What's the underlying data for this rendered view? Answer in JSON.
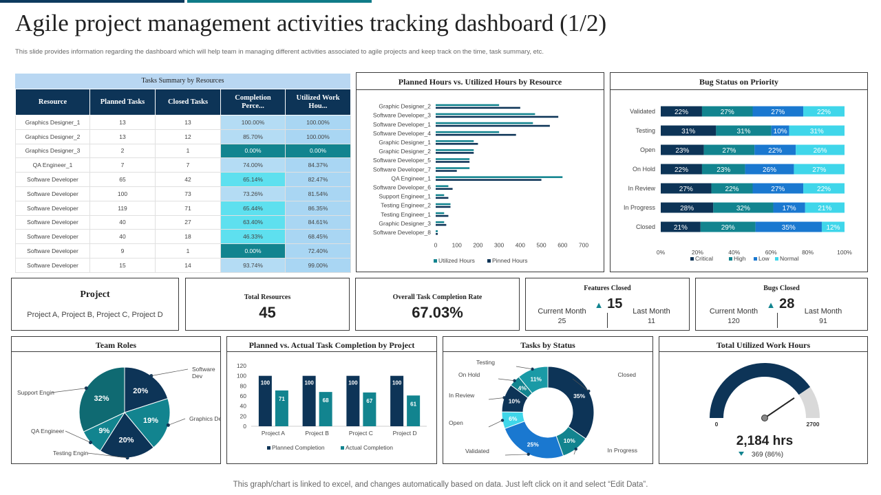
{
  "title": "Agile project management activities tracking dashboard (1/2)",
  "subtitle": "This slide provides information regarding the dashboard which will help team in managing different activities associated to agile projects and keep track on the time, task summary, etc.",
  "footer": "This graph/chart is linked to excel, and changes automatically based on data. Just left click on it and select “Edit Data”.",
  "colors": {
    "navy": "#0d3457",
    "teal": "#12848f",
    "blue": "#1a78d0",
    "cyan": "#3fd6ea",
    "grey": "#d9d9d9"
  },
  "tasks_table": {
    "title": "Tasks Summary by Resources",
    "headers": [
      "Resource",
      "Planned Tasks",
      "Closed Tasks",
      "Completion Perce...",
      "Utilized Work Hou..."
    ],
    "rows": [
      [
        "Graphics Designer_1",
        "13",
        "13",
        "100.00%",
        "100.00%"
      ],
      [
        "Graphics Designer_2",
        "13",
        "12",
        "85.70%",
        "100.00%"
      ],
      [
        "Graphics Designer_3",
        "2",
        "1",
        "0.00%",
        "0.00%"
      ],
      [
        "QA Engineer_1",
        "7",
        "7",
        "74.00%",
        "84.37%"
      ],
      [
        "Software Developer",
        "65",
        "42",
        "65.14%",
        "82.47%"
      ],
      [
        "Software Developer",
        "100",
        "73",
        "73.26%",
        "81.54%"
      ],
      [
        "Software Developer",
        "119",
        "71",
        "65.44%",
        "86.35%"
      ],
      [
        "Software Developer",
        "40",
        "27",
        "63.40%",
        "84.61%"
      ],
      [
        "Software Developer",
        "40",
        "18",
        "46.33%",
        "68.45%"
      ],
      [
        "Software Developer",
        "9",
        "1",
        "0.00%",
        "72.40%"
      ],
      [
        "Software Developer",
        "15",
        "14",
        "93.74%",
        "99.00%"
      ]
    ]
  },
  "kpis": {
    "project": {
      "label": "Project",
      "value": "Project A, Project B, Project C, Project D"
    },
    "resources": {
      "label": "Total Resources",
      "value": "45"
    },
    "completion": {
      "label": "Overall Task Completion Rate",
      "value": "67.03%"
    },
    "features": {
      "label": "Features Closed",
      "value": "15",
      "current_label": "Current Month",
      "current": "25",
      "last_label": "Last Month",
      "last": "11"
    },
    "bugs": {
      "label": "Bugs Closed",
      "value": "28",
      "current_label": "Current Month",
      "current": "120",
      "last_label": "Last Month",
      "last": "91"
    }
  },
  "gauge": {
    "title": "Total Utilized Work Hours",
    "min": "0",
    "max": "2700",
    "value": "2,184 hrs",
    "change": "369 (86%)",
    "fraction": 0.81
  },
  "chart_data": [
    {
      "id": "hours",
      "type": "bar",
      "orientation": "horizontal",
      "title": "Planned Hours vs. Utilized Hours by Resource",
      "categories": [
        "Graphic Designer_2",
        "Software Developer_3",
        "Software Developer_1",
        "Software Developer_4",
        "Graphic Designer_1",
        "Graphic Designer_2",
        "Software Developer_5",
        "Software Developer_7",
        "QA Engineer_1",
        "Software Developer_6",
        "Support Engineer_1",
        "Testing Engineer_2",
        "Testing Engineer_1",
        "Graphic Designer_3",
        "Software Developer_8"
      ],
      "series": [
        {
          "name": "Utilized Hours",
          "color": "#12848f",
          "values": [
            300,
            470,
            460,
            300,
            180,
            180,
            160,
            160,
            600,
            60,
            40,
            70,
            40,
            40,
            10
          ]
        },
        {
          "name": "Pinned Hours",
          "color": "#0d3457",
          "values": [
            400,
            580,
            540,
            380,
            200,
            180,
            160,
            100,
            500,
            80,
            60,
            70,
            60,
            50,
            10
          ]
        }
      ],
      "xlim": [
        0,
        700
      ],
      "xticks": [
        0,
        100,
        200,
        300,
        400,
        500,
        600,
        700
      ]
    },
    {
      "id": "bugs",
      "type": "bar",
      "orientation": "horizontal",
      "stacked": true,
      "title": "Bug Status on Priority",
      "categories": [
        "Validated",
        "Testing",
        "Open",
        "On Hold",
        "In Review",
        "In Progress",
        "Closed"
      ],
      "series": [
        {
          "name": "Critical",
          "color": "#0d3457",
          "values": [
            22,
            31,
            23,
            22,
            27,
            28,
            21
          ]
        },
        {
          "name": "High",
          "color": "#12848f",
          "values": [
            27,
            31,
            27,
            23,
            22,
            32,
            29
          ]
        },
        {
          "name": "Low",
          "color": "#1a78d0",
          "values": [
            27,
            10,
            22,
            26,
            27,
            17,
            35
          ]
        },
        {
          "name": "Normal",
          "color": "#3fd6ea",
          "values": [
            22,
            31,
            26,
            27,
            22,
            21,
            12
          ]
        }
      ],
      "xticks": [
        "0%",
        "20%",
        "40%",
        "60%",
        "80%",
        "100%"
      ]
    },
    {
      "id": "roles",
      "type": "pie",
      "title": "Team Roles",
      "labels": [
        "Software Dev",
        "Graphics Desi",
        "Testing Engin",
        "QA Engineer",
        "Support Engin"
      ],
      "values": [
        20,
        19,
        20,
        9,
        32
      ],
      "value_labels": [
        "20%",
        "19%",
        "20%",
        "9%",
        "32%"
      ],
      "colors": [
        "#0d3457",
        "#12848f",
        "#0d3457",
        "#12848f",
        "#0f6a72"
      ]
    },
    {
      "id": "planned",
      "type": "bar",
      "title": "Planned vs. Actual Task Completion by Project",
      "categories": [
        "Project A",
        "Project B",
        "Project C",
        "Project D"
      ],
      "series": [
        {
          "name": "Planned Completion",
          "color": "#0d3457",
          "values": [
            100,
            100,
            100,
            100
          ]
        },
        {
          "name": "Actual Completion",
          "color": "#12848f",
          "values": [
            71,
            68,
            67,
            61
          ]
        }
      ],
      "ylim": [
        0,
        120
      ],
      "yticks": [
        0,
        20,
        40,
        60,
        80,
        100,
        120
      ]
    },
    {
      "id": "status",
      "type": "pie",
      "donut": true,
      "title": "Tasks by Status",
      "labels": [
        "Closed",
        "In Progress",
        "Validated",
        "Open",
        "In Review",
        "On Hold",
        "Testing"
      ],
      "values": [
        35,
        10,
        25,
        6,
        10,
        4,
        11
      ],
      "value_labels": [
        "35%",
        "10%",
        "25%",
        "6%",
        "10%",
        "4%",
        "11%"
      ],
      "colors": [
        "#0d3457",
        "#12848f",
        "#1a78d0",
        "#3fd6ea",
        "#0d3457",
        "#12848f",
        "#1a9aa6"
      ]
    }
  ]
}
